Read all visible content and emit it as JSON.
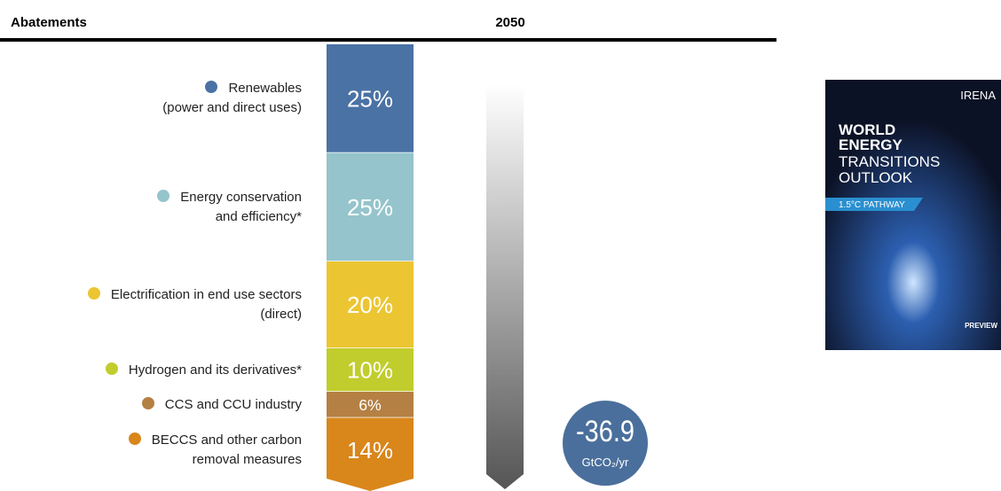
{
  "chart_data": {
    "type": "stacked-column",
    "title": "Abatements",
    "year": "2050",
    "categories": [
      "Renewables\n(power and direct uses)",
      "Energy conservation\nand efficiency*",
      "Electrification in end use sectors\n(direct)",
      "Hydrogen and its derivatives*",
      "CCS and CCU industry",
      "BECCS and other carbon\nremoval measures"
    ],
    "values": [
      25,
      25,
      20,
      10,
      6,
      14
    ],
    "value_labels": [
      "25%",
      "25%",
      "20%",
      "10%",
      "6%",
      "14%"
    ],
    "colors": [
      "#4a72a4",
      "#95c4cc",
      "#ecc532",
      "#c1cd2c",
      "#b58043",
      "#d9861b"
    ],
    "total": -36.9,
    "total_unit": "GtCO₂/yr"
  },
  "cover": {
    "brand": "IRENA",
    "title_lines": [
      "WORLD",
      "ENERGY",
      "TRANSITIONS",
      "OUTLOOK"
    ],
    "tag": "1.5°C PATHWAY",
    "badge": "PREVIEW"
  }
}
